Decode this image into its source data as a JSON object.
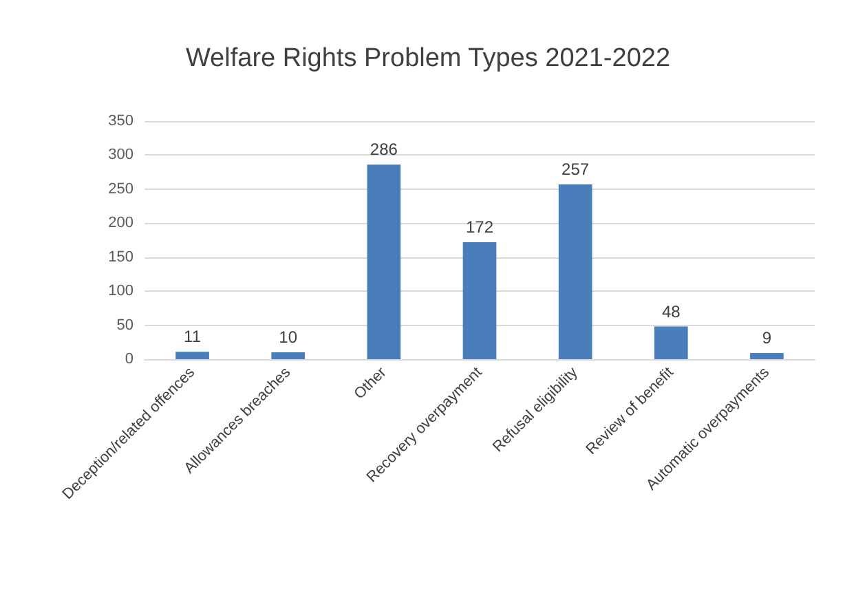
{
  "chart_data": {
    "type": "bar",
    "title": "Welfare Rights Problem Types 2021-2022",
    "categories": [
      "Deception/related offences",
      "Allowances breaches",
      "Other",
      "Recovery overpayment",
      "Refusal eligibility",
      "Review of benefit",
      "Automatic overpayments"
    ],
    "values": [
      11,
      10,
      286,
      172,
      257,
      48,
      9
    ],
    "color": "#4a7ebb",
    "ylim": [
      0,
      350
    ],
    "yticks": [
      0,
      50,
      100,
      150,
      200,
      250,
      300,
      350
    ],
    "grid": "y",
    "data_labels": true
  }
}
